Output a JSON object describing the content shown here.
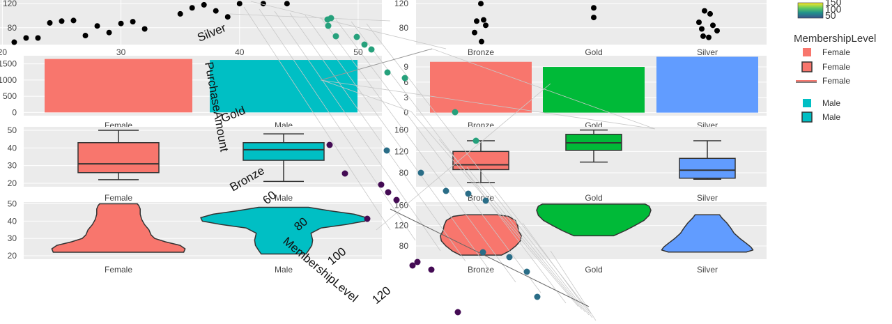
{
  "chart_data": [
    {
      "id": "scatter-age-purchase",
      "type": "scatter",
      "xlim": [
        20,
        52
      ],
      "x_ticks": [
        "20",
        "30",
        "40",
        "50"
      ],
      "y_ticks": [
        "80",
        "120"
      ],
      "x": [
        21,
        22,
        23,
        24,
        25,
        26,
        27,
        28,
        29,
        30,
        31,
        32,
        35,
        36,
        37,
        38,
        39,
        40,
        42,
        44
      ],
      "y": [
        56,
        63,
        63,
        88,
        91,
        92,
        67,
        83,
        72,
        87,
        90,
        78,
        103,
        113,
        118,
        108,
        98,
        120,
        120,
        120
      ]
    },
    {
      "id": "scatter-membership-purchase",
      "type": "scatter",
      "categories": [
        "Bronze",
        "Gold",
        "Silver"
      ],
      "y_ticks": [
        "80",
        "120"
      ],
      "points": [
        {
          "cat": "Bronze",
          "y": 120
        },
        {
          "cat": "Bronze",
          "y": 93
        },
        {
          "cat": "Bronze",
          "y": 91
        },
        {
          "cat": "Bronze",
          "y": 84
        },
        {
          "cat": "Bronze",
          "y": 72
        },
        {
          "cat": "Bronze",
          "y": 57
        },
        {
          "cat": "Gold",
          "y": 113
        },
        {
          "cat": "Gold",
          "y": 97
        },
        {
          "cat": "Silver",
          "y": 108
        },
        {
          "cat": "Silver",
          "y": 103
        },
        {
          "cat": "Silver",
          "y": 89
        },
        {
          "cat": "Silver",
          "y": 84
        },
        {
          "cat": "Silver",
          "y": 78
        },
        {
          "cat": "Silver",
          "y": 75
        },
        {
          "cat": "Silver",
          "y": 66
        },
        {
          "cat": "Silver",
          "y": 64
        }
      ]
    },
    {
      "id": "bar-gender-count",
      "type": "bar",
      "categories": [
        "Female",
        "Male"
      ],
      "values": [
        1650,
        1620
      ],
      "y_ticks": [
        "0",
        "500",
        "1000",
        "1500"
      ],
      "colors": [
        "#F8766D",
        "#00BFC4"
      ]
    },
    {
      "id": "bar-membership-count",
      "type": "bar",
      "categories": [
        "Bronze",
        "Gold",
        "Silver"
      ],
      "values": [
        10,
        9,
        11
      ],
      "y_ticks": [
        "0",
        "3",
        "6",
        "9"
      ],
      "colors": [
        "#F8766D",
        "#00BA38",
        "#619CFF"
      ]
    },
    {
      "id": "box-gender-age",
      "type": "box",
      "categories": [
        "Female",
        "Male"
      ],
      "boxes": [
        {
          "min": 22,
          "q1": 26,
          "median": 31,
          "q3": 43,
          "max": 50
        },
        {
          "min": 21,
          "q1": 33,
          "median": 39,
          "q3": 43,
          "max": 48
        }
      ],
      "y_ticks": [
        "20",
        "30",
        "40",
        "50"
      ],
      "colors": [
        "#F8766D",
        "#00BFC4"
      ]
    },
    {
      "id": "box-membership-purchase",
      "type": "box",
      "categories": [
        "Bronze",
        "Gold",
        "Silver"
      ],
      "boxes": [
        {
          "min": 62,
          "q1": 86,
          "median": 95,
          "q3": 120,
          "max": 140
        },
        {
          "min": 100,
          "q1": 122,
          "median": 136,
          "q3": 152,
          "max": 160
        },
        {
          "min": 68,
          "q1": 70,
          "median": 85,
          "q3": 107,
          "max": 140
        }
      ],
      "y_ticks": [
        "80",
        "120",
        "160"
      ],
      "colors": [
        "#F8766D",
        "#00BA38",
        "#619CFF"
      ]
    },
    {
      "id": "violin-gender-age",
      "type": "violin",
      "categories": [
        "Female",
        "Male"
      ],
      "y_ticks": [
        "20",
        "30",
        "40",
        "50"
      ],
      "colors": [
        "#F8766D",
        "#00BFC4"
      ]
    },
    {
      "id": "violin-membership-purchase",
      "type": "violin",
      "categories": [
        "Bronze",
        "Gold",
        "Silver"
      ],
      "y_ticks": [
        "80",
        "120",
        "160"
      ],
      "colors": [
        "#F8766D",
        "#00BA38",
        "#619CFF"
      ]
    },
    {
      "id": "scatter3d",
      "type": "scatter",
      "axis_labels": [
        "PurchaseAmount",
        "MembershipLevel"
      ],
      "category_ticks": [
        "Silver",
        "Gold",
        "Bronze"
      ],
      "numeric_ticks": [
        "60",
        "80",
        "100",
        "120"
      ]
    }
  ],
  "legend": {
    "colorbar_ticks": [
      "150",
      "100",
      "50"
    ],
    "title": "MembershipLevel",
    "items": [
      "Female",
      "Female",
      "Female",
      "Male",
      "Male"
    ]
  },
  "colors": {
    "panel_bg": "#EBEBEB",
    "female": "#F8766D",
    "male": "#00BFC4",
    "gold": "#00BA38",
    "silver": "#619CFF"
  }
}
